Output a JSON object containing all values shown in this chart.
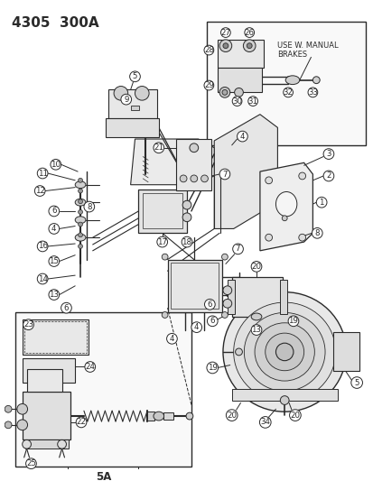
{
  "title": "4305  300A",
  "bg_color": "#ffffff",
  "lc": "#2a2a2a",
  "title_fontsize": 11,
  "label_fontsize": 6.2,
  "inset_text": "USE W. MANUAL\nBRAKES",
  "sub_label": "5A",
  "fig_w": 4.14,
  "fig_h": 5.33,
  "dpi": 100
}
